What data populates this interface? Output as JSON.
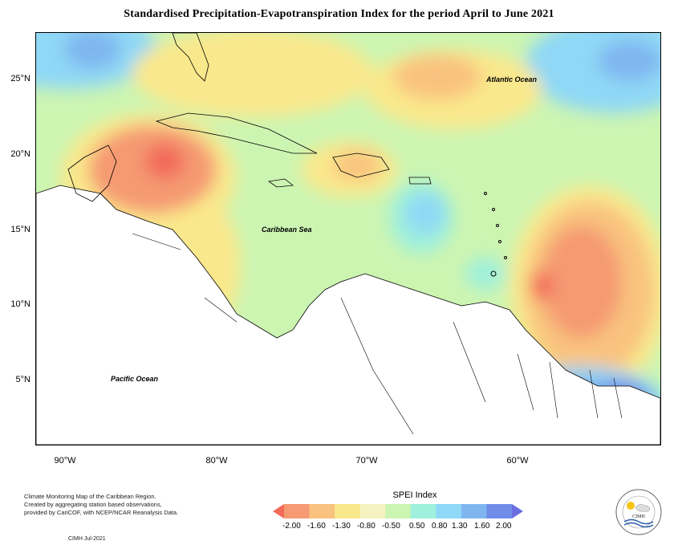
{
  "title": "Standardised Precipitation-Evapotranspiration Index for the period April to June 2021",
  "map": {
    "y_ticks": [
      "25°N",
      "20°N",
      "15°N",
      "10°N",
      "5°N"
    ],
    "x_ticks": [
      "90°W",
      "80°W",
      "70°W",
      "60°W"
    ],
    "labels": {
      "atlantic": "Atlantic Ocean",
      "caribbean": "Caribbean Sea",
      "pacific": "Pacific Ocean"
    }
  },
  "legend": {
    "title": "SPEI Index",
    "breaks": [
      "-2.00",
      "-1.60",
      "-1.30",
      "-0.80",
      "-0.50",
      "0.50",
      "0.80",
      "1.30",
      "1.60",
      "2.00"
    ],
    "colors": [
      "#f26a5a",
      "#f59a72",
      "#f9c27e",
      "#fae88c",
      "#f6f3c2",
      "#ccf5b2",
      "#9ff0dc",
      "#8fd8f6",
      "#7fb6f0",
      "#6f8de8",
      "#6a6ee0"
    ]
  },
  "credits": {
    "line1": "Climate Monitoring Map of the Caribbean Region.",
    "line2": "Created by aggregating station based observations,",
    "line3": "provided by CariCOF, with NCEP/NCAR Reanalysis Data.",
    "stamp": "CIMH Jul-2021"
  },
  "logo": {
    "text": "CIMH"
  }
}
